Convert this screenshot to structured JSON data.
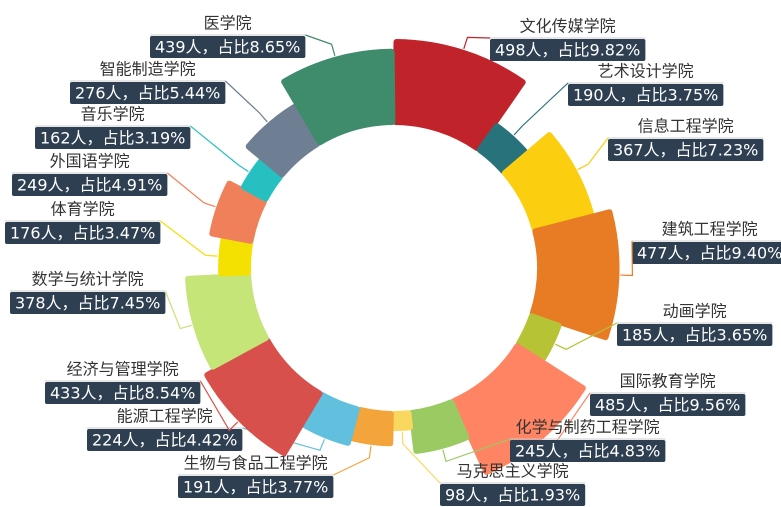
{
  "chart_data": {
    "type": "pie",
    "rose": true,
    "categories": [
      "文化传媒学院",
      "艺术设计学院",
      "信息工程学院",
      "建筑工程学院",
      "动画学院",
      "国际教育学院",
      "化学与制药工程学院",
      "马克思主义学院",
      "生物与食品工程学院",
      "能源工程学院",
      "经济与管理学院",
      "数学与统计学院",
      "体育学院",
      "外国语学院",
      "音乐学院",
      "智能制造学院",
      "医学院"
    ],
    "values": [
      498,
      190,
      367,
      477,
      185,
      485,
      245,
      98,
      191,
      224,
      433,
      378,
      176,
      249,
      162,
      276,
      439
    ],
    "value_labels": [
      "498人，占比9.82%",
      "190人，占比3.75%",
      "367人，占比7.23%",
      "477人，占比9.40%",
      "185人，占比3.65%",
      "485人，占比9.56%",
      "245人，占比4.83%",
      "98人，占比1.93%",
      "191人，占比3.77%",
      "224人，占比4.42%",
      "433人，占比8.54%",
      "378人，占比7.45%",
      "176人，占比3.47%",
      "249人，占比4.91%",
      "162人，占比3.19%",
      "276人，占比5.44%",
      "439人，占比8.65%"
    ],
    "colors": [
      "#c1232b",
      "#27727b",
      "#fcce10",
      "#e87c25",
      "#b5c334",
      "#fe8463",
      "#9bca63",
      "#fad860",
      "#f3a43b",
      "#60c0dd",
      "#d7504b",
      "#c6e579",
      "#f4e001",
      "#f0805a",
      "#26c0c0",
      "#6e7f93",
      "#3f8c6c"
    ]
  }
}
